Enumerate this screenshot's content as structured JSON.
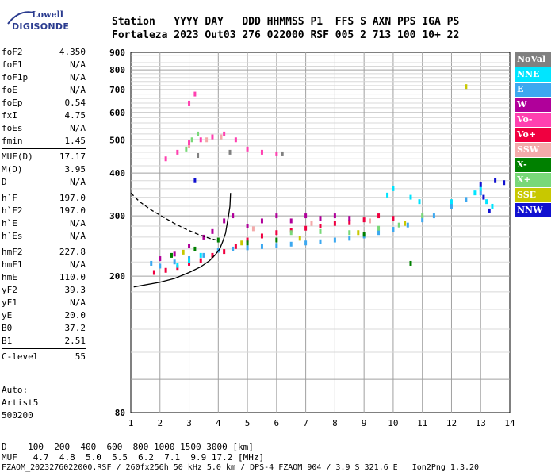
{
  "logo": {
    "line1": "Lowell",
    "line2": "DIGISONDE"
  },
  "header": {
    "line1": "Station   YYYY DAY   DDD HHMMSS P1  FFS S AXN PPS IGA PS",
    "line2": "Fortaleza 2023 Out03 276 022000 RSF 005 2 713 100 10+ 22"
  },
  "params": {
    "group1": [
      {
        "label": "foF2",
        "value": "4.350"
      },
      {
        "label": "foF1",
        "value": "N/A"
      },
      {
        "label": "foF1p",
        "value": "N/A"
      },
      {
        "label": "foE",
        "value": "N/A"
      },
      {
        "label": "foEp",
        "value": "0.54"
      },
      {
        "label": "fxI",
        "value": "4.75"
      },
      {
        "label": "foEs",
        "value": "N/A"
      },
      {
        "label": "fmin",
        "value": "1.45"
      }
    ],
    "group2": [
      {
        "label": "MUF(D)",
        "value": "17.17"
      },
      {
        "label": "M(D)",
        "value": "3.95"
      },
      {
        "label": "D",
        "value": "N/A"
      }
    ],
    "group3": [
      {
        "label": "h`F",
        "value": "197.0"
      },
      {
        "label": "h`F2",
        "value": "197.0"
      },
      {
        "label": "h`E",
        "value": "N/A"
      },
      {
        "label": "h`Es",
        "value": "N/A"
      }
    ],
    "group4": [
      {
        "label": "hmF2",
        "value": "227.8"
      },
      {
        "label": "hmF1",
        "value": "N/A"
      },
      {
        "label": "hmE",
        "value": "110.0"
      },
      {
        "label": "yF2",
        "value": "39.3"
      },
      {
        "label": "yF1",
        "value": "N/A"
      },
      {
        "label": "yE",
        "value": "20.0"
      },
      {
        "label": "B0",
        "value": "37.2"
      },
      {
        "label": "B1",
        "value": "2.51"
      }
    ],
    "group5": [
      {
        "label": "C-level",
        "value": "55"
      }
    ]
  },
  "auto": {
    "line1": "Auto:",
    "line2": "Artist5",
    "line3": "500200"
  },
  "footer": {
    "line1": "D    100  200  400  600  800 1000 1500 3000 [km]",
    "line2": "MUF   4.7  4.8  5.0  5.5  6.2  7.1  9.9 17.2 [MHz]",
    "line3": "FZAOM_2023276022000.RSF / 260fx256h 50 kHz 5.0 km / DPS-4 FZAOM 904 / 3.9 S 321.6 E   Ion2Png 1.3.20"
  },
  "legend": [
    {
      "label": "NoVal",
      "color": "#808080"
    },
    {
      "label": "NNE",
      "color": "#00e5ff"
    },
    {
      "label": "E",
      "color": "#3ca8f0"
    },
    {
      "label": "W",
      "color": "#b0009a"
    },
    {
      "label": "Vo-",
      "color": "#ff40b0"
    },
    {
      "label": "Vo+",
      "color": "#f00040"
    },
    {
      "label": "SSW",
      "color": "#f4aaaa"
    },
    {
      "label": "X-",
      "color": "#008000"
    },
    {
      "label": "X+",
      "color": "#78d878"
    },
    {
      "label": "SSE",
      "color": "#c8c800"
    },
    {
      "label": "NNW",
      "color": "#1010d0"
    }
  ],
  "chart_data": {
    "type": "scatter",
    "xlim": [
      1,
      14
    ],
    "ylim": [
      80,
      900
    ],
    "y_scale": "log",
    "x_ticks": [
      "1",
      "2",
      "3",
      "4",
      "5",
      "6",
      "7",
      "8",
      "9",
      "10",
      "11",
      "12",
      "13",
      "14"
    ],
    "y_ticks": [
      {
        "value": 80,
        "label": "80"
      },
      {
        "value": 200,
        "label": "200"
      },
      {
        "value": 300,
        "label": "300"
      },
      {
        "value": 400,
        "label": "400"
      },
      {
        "value": 500,
        "label": "500"
      },
      {
        "value": 600,
        "label": "600"
      },
      {
        "value": 700,
        "label": "700"
      },
      {
        "value": 800,
        "label": "800"
      },
      {
        "value": 900,
        "label": "900"
      }
    ],
    "grid": true,
    "series": [
      {
        "name": "E",
        "points": [
          [
            1.7,
            218
          ],
          [
            2.0,
            214
          ],
          [
            2.5,
            220
          ],
          [
            3.0,
            225
          ],
          [
            3.5,
            230
          ],
          [
            4.0,
            238
          ],
          [
            4.5,
            240
          ],
          [
            5.0,
            242
          ],
          [
            5.5,
            244
          ],
          [
            6.0,
            246
          ],
          [
            6.5,
            248
          ],
          [
            7.0,
            250
          ],
          [
            7.5,
            252
          ],
          [
            8.0,
            255
          ],
          [
            8.5,
            258
          ],
          [
            9.0,
            262
          ],
          [
            9.5,
            268
          ],
          [
            10.0,
            274
          ],
          [
            10.5,
            282
          ],
          [
            11.0,
            292
          ],
          [
            11.4,
            300
          ],
          [
            12.0,
            320
          ],
          [
            12.5,
            335
          ],
          [
            13.0,
            350
          ]
        ]
      },
      {
        "name": "Vo+",
        "points": [
          [
            1.8,
            205
          ],
          [
            2.2,
            208
          ],
          [
            2.6,
            212
          ],
          [
            3.0,
            218
          ],
          [
            3.4,
            222
          ],
          [
            3.8,
            230
          ],
          [
            4.2,
            236
          ],
          [
            4.6,
            244
          ],
          [
            5.0,
            255
          ],
          [
            5.5,
            262
          ],
          [
            6.0,
            268
          ],
          [
            6.5,
            272
          ],
          [
            7.0,
            276
          ],
          [
            7.5,
            280
          ],
          [
            8.0,
            285
          ],
          [
            8.5,
            288
          ],
          [
            9.0,
            292
          ],
          [
            9.5,
            300
          ],
          [
            10.0,
            295
          ]
        ]
      },
      {
        "name": "W",
        "points": [
          [
            2.0,
            225
          ],
          [
            2.5,
            232
          ],
          [
            3.0,
            245
          ],
          [
            3.5,
            260
          ],
          [
            3.8,
            270
          ],
          [
            4.2,
            290
          ],
          [
            4.5,
            300
          ],
          [
            5.0,
            280
          ],
          [
            5.5,
            290
          ],
          [
            6.0,
            300
          ],
          [
            6.5,
            290
          ],
          [
            7.0,
            300
          ],
          [
            7.5,
            295
          ],
          [
            8.0,
            300
          ],
          [
            8.5,
            295
          ]
        ]
      },
      {
        "name": "NNE",
        "points": [
          [
            2.6,
            215
          ],
          [
            3.0,
            222
          ],
          [
            3.4,
            230
          ],
          [
            9.8,
            345
          ],
          [
            10.0,
            360
          ],
          [
            10.6,
            340
          ],
          [
            10.9,
            330
          ],
          [
            12.0,
            330
          ],
          [
            12.8,
            350
          ],
          [
            13.0,
            360
          ],
          [
            13.2,
            330
          ],
          [
            13.4,
            320
          ]
        ]
      },
      {
        "name": "X-",
        "points": [
          [
            2.4,
            230
          ],
          [
            3.2,
            240
          ],
          [
            4.0,
            255
          ],
          [
            5.0,
            250
          ],
          [
            6.0,
            255
          ],
          [
            9.0,
            265
          ],
          [
            10.6,
            218
          ]
        ]
      },
      {
        "name": "X+",
        "points": [
          [
            2.9,
            470
          ],
          [
            3.1,
            500
          ],
          [
            3.3,
            520
          ],
          [
            6.5,
            268
          ],
          [
            7.5,
            270
          ],
          [
            8.5,
            268
          ],
          [
            9.5,
            276
          ],
          [
            10.2,
            282
          ],
          [
            11.0,
            300
          ]
        ]
      },
      {
        "name": "SSE",
        "points": [
          [
            2.8,
            235
          ],
          [
            4.8,
            250
          ],
          [
            6.8,
            258
          ],
          [
            8.8,
            268
          ],
          [
            10.4,
            285
          ],
          [
            12.5,
            715
          ]
        ]
      },
      {
        "name": "SSW",
        "points": [
          [
            3.0,
            480
          ],
          [
            3.6,
            500
          ],
          [
            4.1,
            510
          ],
          [
            5.2,
            275
          ],
          [
            7.2,
            285
          ],
          [
            9.2,
            290
          ]
        ]
      },
      {
        "name": "Vo-",
        "points": [
          [
            2.2,
            440
          ],
          [
            2.6,
            460
          ],
          [
            3.0,
            490
          ],
          [
            3.4,
            500
          ],
          [
            3.8,
            510
          ],
          [
            4.2,
            520
          ],
          [
            4.6,
            500
          ],
          [
            5.0,
            470
          ],
          [
            5.5,
            460
          ],
          [
            6.0,
            455
          ],
          [
            3.0,
            640
          ],
          [
            3.2,
            680
          ]
        ]
      },
      {
        "name": "NNW",
        "points": [
          [
            3.2,
            380
          ],
          [
            13.0,
            370
          ],
          [
            13.1,
            340
          ],
          [
            13.3,
            310
          ],
          [
            13.5,
            380
          ],
          [
            13.8,
            375
          ]
        ]
      },
      {
        "name": "NoVal",
        "points": [
          [
            3.3,
            450
          ],
          [
            4.4,
            460
          ],
          [
            6.2,
            455
          ]
        ]
      }
    ],
    "trace_solid": [
      [
        1.1,
        186
      ],
      [
        2.0,
        192
      ],
      [
        2.5,
        197
      ],
      [
        3.0,
        205
      ],
      [
        3.4,
        213
      ],
      [
        3.7,
        222
      ],
      [
        3.9,
        231
      ],
      [
        4.05,
        240
      ],
      [
        4.15,
        252
      ],
      [
        4.25,
        267
      ],
      [
        4.3,
        283
      ],
      [
        4.35,
        300
      ],
      [
        4.4,
        320
      ],
      [
        4.42,
        350
      ]
    ],
    "trace_dashed": [
      [
        1.0,
        350
      ],
      [
        1.3,
        330
      ],
      [
        1.7,
        312
      ],
      [
        2.1,
        298
      ],
      [
        2.5,
        285
      ],
      [
        2.9,
        274
      ],
      [
        3.3,
        265
      ],
      [
        3.7,
        258
      ],
      [
        4.0,
        254
      ]
    ]
  }
}
